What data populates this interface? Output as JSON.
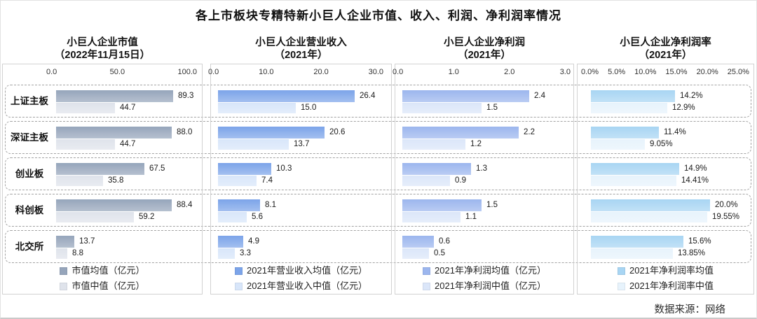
{
  "page_title": "各上市板块专精特新小巨人企业市值、收入、利润、净利润率情况",
  "source_note": "数据来源：网络",
  "chart_data": {
    "type": "bar",
    "orientation": "horizontal",
    "categories": [
      "上证主板",
      "深证主板",
      "创业板",
      "科创板",
      "北交所"
    ],
    "panels": [
      {
        "heading": "小巨人企业市值",
        "subheading": "（2022年11月15日）",
        "ticks": [
          "0.0",
          "50.0",
          "100.0"
        ],
        "axis_max": 100,
        "series": [
          {
            "name": "市值均值（亿元）",
            "color": "#96a5bb",
            "values": [
              89.3,
              88.0,
              67.5,
              88.4,
              13.7
            ],
            "labels": [
              "89.3",
              "88.0",
              "67.5",
              "88.4",
              "13.7"
            ]
          },
          {
            "name": "市值中值（亿元）",
            "color": "#dfe3eb",
            "values": [
              44.7,
              44.7,
              35.8,
              59.2,
              8.8
            ],
            "labels": [
              "44.7",
              "44.7",
              "35.8",
              "59.2",
              "8.8"
            ]
          }
        ]
      },
      {
        "heading": "小巨人企业营业收入",
        "subheading": "（2021年）",
        "ticks": [
          "0.0",
          "10.0",
          "20.0",
          "30.0"
        ],
        "axis_max": 30,
        "series": [
          {
            "name": "2021年营业收入均值（亿元）",
            "color": "#7ca4e9",
            "values": [
              26.4,
              20.6,
              10.3,
              8.1,
              4.9
            ],
            "labels": [
              "26.4",
              "20.6",
              "10.3",
              "8.1",
              "4.9"
            ]
          },
          {
            "name": "2021年营业收入中值（亿元）",
            "color": "#d8e6fa",
            "values": [
              15.0,
              13.7,
              7.4,
              5.6,
              3.3
            ],
            "labels": [
              "15.0",
              "13.7",
              "7.4",
              "5.6",
              "3.3"
            ]
          }
        ]
      },
      {
        "heading": "小巨人企业净利润",
        "subheading": "（2021年）",
        "ticks": [
          "0.0",
          "1.0",
          "2.0",
          "3.0"
        ],
        "axis_max": 3,
        "series": [
          {
            "name": "2021年净利润均值（亿元）",
            "color": "#9cb6ee",
            "values": [
              2.4,
              2.2,
              1.3,
              1.5,
              0.6
            ],
            "labels": [
              "2.4",
              "2.2",
              "1.3",
              "1.5",
              "0.6"
            ]
          },
          {
            "name": "2021年净利润中值（亿元）",
            "color": "#dbe6f9",
            "values": [
              1.5,
              1.2,
              0.9,
              1.1,
              0.5
            ],
            "labels": [
              "1.5",
              "1.2",
              "0.9",
              "1.1",
              "0.5"
            ]
          }
        ]
      },
      {
        "heading": "小巨人企业净利润率",
        "subheading": "（2021年）",
        "ticks": [
          "0.0%",
          "5.0%",
          "10.0%",
          "15.0%",
          "20.0%",
          "25.0%"
        ],
        "axis_max": 25,
        "series": [
          {
            "name": "2021年净利润率均值",
            "color": "#a8d5f3",
            "values": [
              14.2,
              11.4,
              14.9,
              20.0,
              15.6
            ],
            "labels": [
              "14.2%",
              "11.4%",
              "14.9%",
              "20.0%",
              "15.6%"
            ]
          },
          {
            "name": "2021年净利润率中值",
            "color": "#e7f3fc",
            "values": [
              12.9,
              9.05,
              14.41,
              19.55,
              13.85
            ],
            "labels": [
              "12.9%",
              "9.05%",
              "14.41%",
              "19.55%",
              "13.85%"
            ]
          }
        ]
      }
    ]
  }
}
